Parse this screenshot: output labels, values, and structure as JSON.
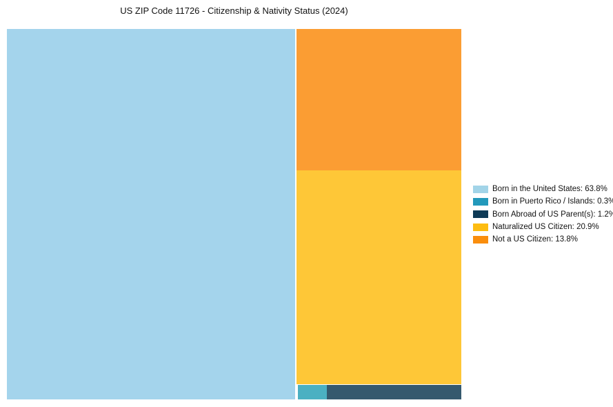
{
  "title": "US ZIP Code 11726 - Citizenship & Nativity Status (2024)",
  "chart_data": {
    "type": "treemap",
    "title": "US ZIP Code 11726 - Citizenship & Nativity Status (2024)",
    "unit": "%",
    "legend_position": "right",
    "categories": [
      "Born in the United States",
      "Born in Puerto Rico / Islands",
      "Born Abroad of US Parent(s)",
      "Naturalized US Citizen",
      "Not a US Citizen"
    ],
    "values": [
      63.8,
      0.3,
      1.2,
      20.9,
      13.8
    ],
    "items": [
      {
        "category": "Born in the United States",
        "value": 63.8,
        "legend_label": "Born in the United States: 63.8%",
        "legend_color": "#a2d4e8",
        "tile_color": "#a4d4ec"
      },
      {
        "category": "Born in Puerto Rico / Islands",
        "value": 0.3,
        "legend_label": "Born in Puerto Rico / Islands: 0.3%",
        "legend_color": "#2399bb",
        "tile_color": "#4bb0c2"
      },
      {
        "category": "Born Abroad of US Parent(s)",
        "value": 1.2,
        "legend_label": "Born Abroad of US Parent(s): 1.2%",
        "legend_color": "#0e3a56",
        "tile_color": "#35596e"
      },
      {
        "category": "Naturalized US Citizen",
        "value": 20.9,
        "legend_label": "Naturalized US Citizen: 20.9%",
        "legend_color": "#fdbc11",
        "tile_color": "#fec737"
      },
      {
        "category": "Not a US Citizen",
        "value": 13.8,
        "legend_label": "Not a US Citizen: 13.8%",
        "legend_color": "#fa8e0d",
        "tile_color": "#fb9d33"
      }
    ]
  }
}
